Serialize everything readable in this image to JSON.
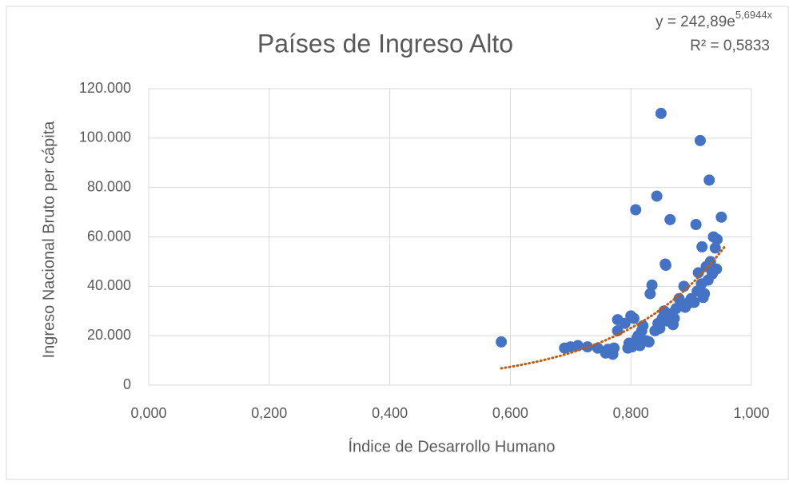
{
  "chart_data": {
    "type": "scatter",
    "title": "Países de Ingreso Alto",
    "x_label": "Índice de Desarrollo Humano",
    "y_label": "Ingreso Nacional Bruto per cápita",
    "annotations": {
      "equation": "y = 242,89e",
      "equation_exponent": "5,6944x",
      "r_squared": "R² = 0,5833"
    },
    "trendline": {
      "type": "exponential",
      "a": 242.89,
      "b": 5.6944,
      "color": "#c55a11"
    },
    "color": "#4472c4",
    "grid": true,
    "xlim": [
      0,
      1
    ],
    "ylim": [
      0,
      120000
    ],
    "xticks": [
      {
        "value": 0,
        "label": "0,000"
      },
      {
        "value": 0.2,
        "label": "0,200"
      },
      {
        "value": 0.4,
        "label": "0,400"
      },
      {
        "value": 0.6,
        "label": "0,600"
      },
      {
        "value": 0.8,
        "label": "0,800"
      },
      {
        "value": 1,
        "label": "1,000"
      }
    ],
    "yticks": [
      0,
      {
        "value": 20000,
        "label": "20.000"
      },
      {
        "value": 40000,
        "label": "40.000"
      },
      {
        "value": 60000,
        "label": "60.000"
      },
      {
        "value": 80000,
        "label": "80.000"
      },
      {
        "value": 100000,
        "label": "100.000"
      },
      {
        "value": 120000,
        "label": "120.000"
      }
    ],
    "x": [
      0.585,
      0.69,
      0.7,
      0.712,
      0.728,
      0.745,
      0.758,
      0.762,
      0.768,
      0.77,
      0.772,
      0.778,
      0.778,
      0.79,
      0.795,
      0.797,
      0.8,
      0.802,
      0.805,
      0.808,
      0.81,
      0.812,
      0.815,
      0.818,
      0.82,
      0.825,
      0.83,
      0.832,
      0.835,
      0.84,
      0.843,
      0.845,
      0.848,
      0.85,
      0.852,
      0.855,
      0.857,
      0.858,
      0.86,
      0.865,
      0.868,
      0.87,
      0.872,
      0.875,
      0.88,
      0.885,
      0.888,
      0.89,
      0.895,
      0.898,
      0.9,
      0.905,
      0.908,
      0.91,
      0.912,
      0.915,
      0.917,
      0.918,
      0.92,
      0.922,
      0.925,
      0.928,
      0.93,
      0.932,
      0.935,
      0.937,
      0.94,
      0.942,
      0.943,
      0.95
    ],
    "values": [
      17500,
      15000,
      15500,
      16000,
      15500,
      15000,
      13000,
      14500,
      13000,
      12500,
      15000,
      22000,
      26500,
      25000,
      15000,
      17000,
      28000,
      15500,
      27000,
      71000,
      19000,
      20000,
      16000,
      22000,
      24000,
      18000,
      17500,
      37000,
      40500,
      22000,
      76500,
      25000,
      23000,
      110000,
      27000,
      30000,
      49000,
      48500,
      26000,
      67000,
      29000,
      24500,
      27000,
      31000,
      35000,
      33000,
      40000,
      31500,
      33000,
      34000,
      35000,
      33500,
      65000,
      38000,
      45500,
      99000,
      41000,
      56000,
      35500,
      37000,
      48000,
      42500,
      83000,
      50000,
      45000,
      60000,
      55500,
      47000,
      59000,
      68000
    ]
  }
}
